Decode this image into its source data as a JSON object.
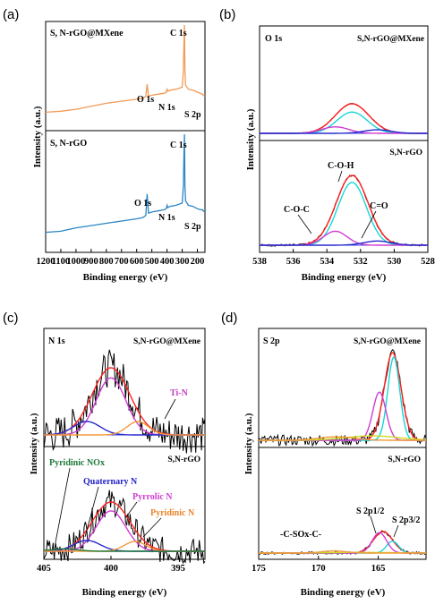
{
  "chart_data": [
    {
      "panel": "(a)",
      "type": "line",
      "xlabel": "Binding energy (eV)",
      "ylabel": "Intensity (a.u.)",
      "xlim": [
        1200,
        150
      ],
      "xticks": [
        "1200",
        "1100",
        "1000",
        "900",
        "800",
        "700",
        "600",
        "500",
        "400",
        "300",
        "200"
      ],
      "sub": [
        {
          "label": "S, N-rGO@MXene",
          "annotations": [
            {
              "text": "O 1s",
              "x": 531
            },
            {
              "text": "N 1s",
              "x": 400
            },
            {
              "text": "C 1s",
              "x": 285
            },
            {
              "text": "S 2p",
              "x": 165
            }
          ]
        },
        {
          "label": "S, N-rGO",
          "annotations": [
            {
              "text": "O 1s",
              "x": 531
            },
            {
              "text": "N 1s",
              "x": 400
            },
            {
              "text": "C 1s",
              "x": 285
            },
            {
              "text": "S 2p",
              "x": 165
            }
          ]
        }
      ],
      "series": [
        {
          "name": "S, N-rGO@MXene",
          "color": "#f39a55",
          "x": [
            1200,
            1100,
            1000,
            900,
            800,
            700,
            600,
            560,
            540,
            531,
            522,
            500,
            460,
            420,
            405,
            400,
            395,
            380,
            340,
            300,
            292,
            288,
            285,
            282,
            278,
            260,
            230,
            200,
            180,
            168,
            165,
            162,
            150
          ],
          "y": [
            0.13,
            0.14,
            0.16,
            0.19,
            0.22,
            0.24,
            0.26,
            0.27,
            0.29,
            0.41,
            0.29,
            0.3,
            0.31,
            0.32,
            0.33,
            0.36,
            0.34,
            0.35,
            0.36,
            0.38,
            0.55,
            0.85,
            1.0,
            0.55,
            0.4,
            0.36,
            0.35,
            0.33,
            0.32,
            0.31,
            0.31,
            0.3,
            0.29
          ]
        },
        {
          "name": "S, N-rGO",
          "color": "#2a86c4",
          "x": [
            1200,
            1100,
            1000,
            900,
            800,
            700,
            600,
            560,
            540,
            531,
            522,
            500,
            460,
            420,
            405,
            400,
            395,
            380,
            340,
            300,
            292,
            288,
            285,
            282,
            278,
            260,
            230,
            200,
            180,
            168,
            165,
            162,
            150
          ],
          "y": [
            0.13,
            0.14,
            0.17,
            0.19,
            0.21,
            0.23,
            0.25,
            0.26,
            0.28,
            0.47,
            0.3,
            0.31,
            0.32,
            0.33,
            0.34,
            0.37,
            0.35,
            0.36,
            0.37,
            0.39,
            0.55,
            0.85,
            1.0,
            0.55,
            0.41,
            0.37,
            0.36,
            0.34,
            0.33,
            0.33,
            0.33,
            0.32,
            0.31
          ]
        }
      ]
    },
    {
      "panel": "(b)",
      "type": "line",
      "xlabel": "Binding energy (eV)",
      "ylabel": "Intensity (a.u.)",
      "xlim": [
        538,
        528
      ],
      "xticks": [
        "538",
        "536",
        "534",
        "532",
        "530",
        "528"
      ],
      "sub": [
        {
          "title": "O 1s",
          "label": "S,N-rGO@MXene",
          "components": [
            {
              "color": "#ff2020",
              "center": 532.5,
              "height": 1.0,
              "width": 1.0
            },
            {
              "color": "#18d6d6",
              "center": 532.5,
              "height": 0.72,
              "width": 0.9
            },
            {
              "color": "#d23cd2",
              "center": 533.5,
              "height": 0.22,
              "width": 0.8
            },
            {
              "color": "#2a2acf",
              "center": 531.0,
              "height": 0.12,
              "width": 0.8
            }
          ]
        },
        {
          "label": "S,N-rGO",
          "annotations": [
            {
              "text": "C-O-H",
              "x": 532.4
            },
            {
              "text": "C-O-C",
              "x": 534.0
            },
            {
              "text": "C=O",
              "x": 530.8
            }
          ],
          "components": [
            {
              "color": "#ff2020",
              "center": 532.5,
              "height": 1.0,
              "width": 0.95
            },
            {
              "color": "#18d6d6",
              "center": 532.5,
              "height": 0.9,
              "width": 0.85
            },
            {
              "color": "#d23cd2",
              "center": 533.5,
              "height": 0.2,
              "width": 0.7
            },
            {
              "color": "#2a2acf",
              "center": 531.0,
              "height": 0.06,
              "width": 0.8
            }
          ]
        }
      ]
    },
    {
      "panel": "(c)",
      "type": "line",
      "xlabel": "Binding energy (eV)",
      "ylabel": "Intensity (a.u.)",
      "xlim": [
        405,
        393
      ],
      "xticks": [
        "405",
        "400",
        "395"
      ],
      "sub": [
        {
          "title": "N 1s",
          "label": "S,N-rGO@MXene",
          "annotations": [
            {
              "text": "Ti-N",
              "x": 397.8
            }
          ],
          "components": [
            {
              "color": "#ff2020",
              "center": 400.0,
              "height": 1.0,
              "width": 1.4
            },
            {
              "color": "#d23cd2",
              "center": 400.0,
              "height": 0.85,
              "width": 1.1
            },
            {
              "color": "#2a2acf",
              "center": 401.8,
              "height": 0.2,
              "width": 1.0
            },
            {
              "color": "#f29a3a",
              "center": 398.0,
              "height": 0.2,
              "width": 0.8
            }
          ]
        },
        {
          "label": "S,N-rGO",
          "annotations": [
            {
              "text": "Pyridinic NOx",
              "x": 403.5
            },
            {
              "text": "Quaternary N",
              "x": 401.5
            },
            {
              "text": "Pyrrolic N",
              "x": 400.0
            },
            {
              "text": "Pyridinic N",
              "x": 398.2
            }
          ],
          "components": [
            {
              "color": "#ff2020",
              "center": 400.0,
              "height": 1.0,
              "width": 1.4
            },
            {
              "color": "#d23cd2",
              "center": 400.0,
              "height": 0.82,
              "width": 1.1
            },
            {
              "color": "#2a2acf",
              "center": 401.8,
              "height": 0.22,
              "width": 1.0
            },
            {
              "color": "#f29a3a",
              "center": 398.2,
              "height": 0.2,
              "width": 0.8
            },
            {
              "color": "#1f7a3a",
              "center": 403.5,
              "height": 0.05,
              "width": 1.0
            }
          ]
        }
      ]
    },
    {
      "panel": "(d)",
      "type": "line",
      "xlabel": "Binding energy (eV)",
      "ylabel": "Intensity (a.u.)",
      "xlim": [
        175,
        161
      ],
      "xticks": [
        "175",
        "170",
        "165"
      ],
      "sub": [
        {
          "title": "S 2p",
          "label": "S,N-rGO@MXene",
          "components": [
            {
              "color": "#ff2020",
              "center": 163.8,
              "height": 1.0,
              "width": 0.7
            },
            {
              "color": "#18d6d6",
              "center": 163.7,
              "height": 0.95,
              "width": 0.5
            },
            {
              "color": "#d23cd2",
              "center": 164.9,
              "height": 0.55,
              "width": 0.55
            },
            {
              "color": "#ccdd22",
              "center": 165.5,
              "height": 0.05,
              "width": 2.2
            },
            {
              "color": "#f29a3a",
              "center": 168.5,
              "height": 0.04,
              "width": 1.5
            }
          ]
        },
        {
          "label": "S,N-rGO",
          "annotations": [
            {
              "text": "-C-SOx-C-",
              "x": 168.7
            },
            {
              "text": "S 2p1/2",
              "x": 165.0
            },
            {
              "text": "S 2p3/2",
              "x": 163.8
            }
          ],
          "components": [
            {
              "color": "#ff2020",
              "center": 164.6,
              "height": 1.0,
              "width": 0.8
            },
            {
              "color": "#18d6d6",
              "center": 163.8,
              "height": 0.55,
              "width": 0.5
            },
            {
              "color": "#d23cd2",
              "center": 164.9,
              "height": 0.95,
              "width": 0.6
            },
            {
              "color": "#ccdd22",
              "center": 166.5,
              "height": 0.03,
              "width": 2.5
            },
            {
              "color": "#f29a3a",
              "center": 168.7,
              "height": 0.1,
              "width": 1.0
            }
          ]
        }
      ]
    }
  ]
}
